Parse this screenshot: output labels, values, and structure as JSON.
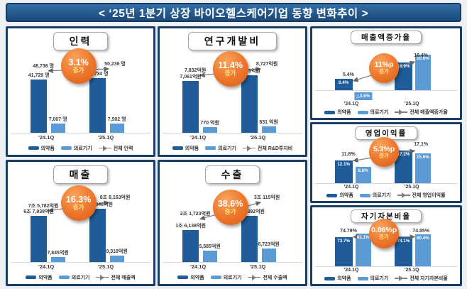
{
  "page_title": "< ‘25년 1분기 상장 바이오헬스케어기업 동향 변화추이 >",
  "colors": {
    "dark_bar": "#1F5C99",
    "light_bar": "#5B9BD5",
    "header_bg": "#24598C",
    "panel_border": "#1B3D63",
    "bubble_orange": "#EF7C31",
    "trend_line": "#7F7F7F"
  },
  "chart_data": [
    {
      "id": "personnel",
      "type": "bar",
      "size": "large",
      "title": "인력",
      "categories": [
        "'24.1Q",
        "'25.1Q"
      ],
      "series": [
        {
          "name": "의약품",
          "role": "dark",
          "values": [
            41729,
            42734
          ],
          "labels": [
            "41,729 명",
            "42,734 명"
          ]
        },
        {
          "name": "의료기기",
          "role": "light",
          "values": [
            7007,
            7502
          ],
          "labels": [
            "7,007 명",
            "7,502 명"
          ]
        },
        {
          "name": "전체 인력",
          "role": "total-line",
          "values": [
            48736,
            50236
          ],
          "labels": [
            "48,736 명",
            "50,236 명"
          ]
        }
      ],
      "bubble": {
        "value": "3.1%",
        "caption": "증가"
      }
    },
    {
      "id": "rnd-expense",
      "type": "bar",
      "size": "large",
      "title": "연구개발비",
      "categories": [
        "'24.1Q",
        "'25.1Q"
      ],
      "series": [
        {
          "name": "의약품",
          "role": "dark",
          "values": [
            7061,
            7895
          ],
          "labels": [
            "7,061억원",
            "7,895억원"
          ]
        },
        {
          "name": "의료기기",
          "role": "light",
          "values": [
            770,
            831
          ],
          "labels": [
            "770 억원",
            "831 억원"
          ]
        },
        {
          "name": "전체 R&D투자비",
          "role": "total-line",
          "values": [
            7832,
            8727
          ],
          "labels": [
            "7,832억원",
            "8,727억원"
          ]
        }
      ],
      "bubble": {
        "value": "11.4%",
        "caption": "증가"
      }
    },
    {
      "id": "revenue-growth-rate",
      "type": "bar",
      "size": "small",
      "title": "매출액증가율",
      "categories": [
        "'24.1Q",
        "'25.1Q"
      ],
      "series": [
        {
          "name": "의약품",
          "role": "dark",
          "values": [
            6.4,
            15.9
          ],
          "labels": [
            "6.4%",
            "15.9%"
          ]
        },
        {
          "name": "의료기기",
          "role": "light",
          "values": [
            -3.6,
            20.6
          ],
          "labels": [
            "△3.6%",
            "20.6%"
          ]
        },
        {
          "name": "전체 매출액증가율",
          "role": "total-line",
          "values": [
            5.4,
            16.4
          ],
          "labels": [
            "5.4%",
            "16.4%"
          ]
        }
      ],
      "bubble": {
        "value": "11%p",
        "caption": "증가"
      }
    },
    {
      "id": "revenue",
      "type": "bar",
      "size": "large",
      "title": "매출",
      "categories": [
        "'24.1Q",
        "'25.1Q"
      ],
      "series": [
        {
          "name": "의약품",
          "role": "dark",
          "values": [
            67938,
            78846
          ],
          "labels": [
            "6조 7,938억원",
            "7조 8,846억원"
          ]
        },
        {
          "name": "의료기기",
          "role": "light",
          "values": [
            7845,
            9318
          ],
          "labels": [
            "7,845억원",
            "9,318억원"
          ]
        },
        {
          "name": "전체 매출액",
          "role": "total-line",
          "values": [
            75782,
            88163
          ],
          "labels": [
            "7조 5,782억원",
            "8조 8,163억원"
          ]
        }
      ],
      "bubble": {
        "value": "16.3%",
        "caption": "증가"
      }
    },
    {
      "id": "export",
      "type": "bar",
      "size": "large",
      "title": "수출",
      "categories": [
        "'24.1Q",
        "'25.1Q"
      ],
      "series": [
        {
          "name": "의약품",
          "role": "dark",
          "values": [
            16138,
            23392
          ],
          "labels": [
            "1조 6,138억원",
            "2조 3,392억원"
          ]
        },
        {
          "name": "의료기기",
          "role": "light",
          "values": [
            5585,
            6723
          ],
          "labels": [
            "5,585억원",
            "6,723억원"
          ]
        },
        {
          "name": "전체 수출액",
          "role": "total-line",
          "values": [
            21723,
            30115
          ],
          "labels": [
            "2조 1,723억원",
            "3조 115억원"
          ]
        }
      ],
      "bubble": {
        "value": "38.6%",
        "caption": "증가"
      }
    },
    {
      "id": "operating-margin",
      "type": "bar",
      "size": "small",
      "title": "영업이익률",
      "categories": [
        "'24.1Q",
        "'25.1Q"
      ],
      "series": [
        {
          "name": "의약품",
          "role": "dark",
          "values": [
            12.1,
            17.2
          ],
          "labels": [
            "12.1%",
            "17.2%"
          ]
        },
        {
          "name": "의료기기",
          "role": "light",
          "values": [
            8.6,
            15.6
          ],
          "labels": [
            "8.6%",
            "15.6%"
          ]
        },
        {
          "name": "전체 영업이익률",
          "role": "total-line",
          "values": [
            11.8,
            17.1
          ],
          "labels": [
            "11.8%",
            "17.1%"
          ]
        }
      ],
      "bubble": {
        "value": "5.3%p",
        "caption": "증가"
      }
    },
    {
      "id": "equity-ratio",
      "type": "bar",
      "size": "small",
      "title": "자기자본비율",
      "categories": [
        "'24.1Q",
        "'25.1Q"
      ],
      "series": [
        {
          "name": "의약품",
          "role": "dark",
          "values": [
            73.7,
            74.1
          ],
          "labels": [
            "73.7%",
            "74.1%"
          ]
        },
        {
          "name": "의료기기",
          "role": "light",
          "values": [
            83.1,
            80.4
          ],
          "labels": [
            "83.1%",
            "80.4%"
          ]
        },
        {
          "name": "전체 자기자본비율",
          "role": "total-line",
          "values": [
            74.79,
            74.85
          ],
          "labels": [
            "74.79%",
            "74.85%"
          ]
        }
      ],
      "bubble": {
        "value": "0.06%p",
        "caption": "증가"
      }
    }
  ]
}
